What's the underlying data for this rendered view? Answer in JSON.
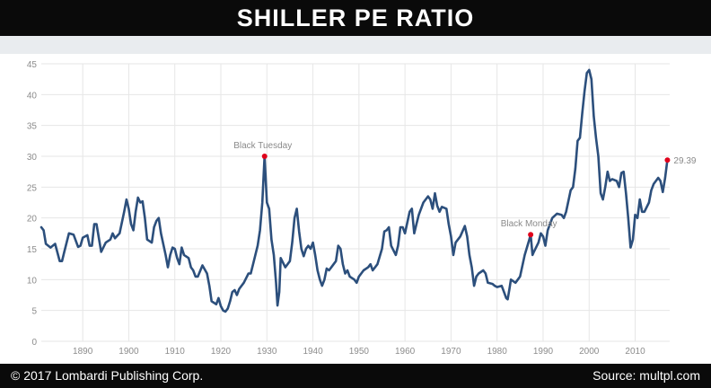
{
  "header": {
    "title": "SHILLER PE RATIO"
  },
  "footer": {
    "copyright": "© 2017 Lombardi Publishing Corp.",
    "source": "Source: multpl.com"
  },
  "colors": {
    "line": "#2c4f7c",
    "marker": "#e0001b",
    "grid": "#e6e6e6",
    "tick_text": "#8c8c8c",
    "annotation_text": "#8a8a8a"
  },
  "chart_data": {
    "type": "line",
    "title": "",
    "xlabel": "",
    "ylabel": "",
    "xlim": [
      1881,
      2017.5
    ],
    "ylim": [
      0,
      45
    ],
    "x_ticks": [
      1890,
      1900,
      1910,
      1920,
      1930,
      1940,
      1950,
      1960,
      1970,
      1980,
      1990,
      2000,
      2010
    ],
    "y_ticks": [
      0,
      5,
      10,
      15,
      20,
      25,
      30,
      35,
      40,
      45
    ],
    "grid": true,
    "series": [
      {
        "points": [
          [
            1881,
            18.5
          ],
          [
            1881.5,
            18
          ],
          [
            1882,
            15.8
          ],
          [
            1883,
            15.2
          ],
          [
            1884,
            15.8
          ],
          [
            1885,
            13
          ],
          [
            1885.5,
            13
          ],
          [
            1886,
            14.5
          ],
          [
            1887,
            17.5
          ],
          [
            1888,
            17.3
          ],
          [
            1889,
            15.3
          ],
          [
            1889.5,
            15.5
          ],
          [
            1890,
            16.8
          ],
          [
            1891,
            17.2
          ],
          [
            1891.5,
            15.5
          ],
          [
            1892,
            15.5
          ],
          [
            1892.5,
            19
          ],
          [
            1893,
            19
          ],
          [
            1894,
            14.5
          ],
          [
            1895,
            16
          ],
          [
            1896,
            16.5
          ],
          [
            1896.5,
            17.5
          ],
          [
            1897,
            16.7
          ],
          [
            1898,
            17.5
          ],
          [
            1899,
            21
          ],
          [
            1899.5,
            23
          ],
          [
            1900,
            21.5
          ],
          [
            1900.5,
            19
          ],
          [
            1901,
            18
          ],
          [
            1901.5,
            21
          ],
          [
            1902,
            23.3
          ],
          [
            1902.5,
            22.5
          ],
          [
            1903,
            22.7
          ],
          [
            1903.5,
            20
          ],
          [
            1904,
            16.5
          ],
          [
            1905,
            16
          ],
          [
            1905.5,
            18.5
          ],
          [
            1906,
            19.5
          ],
          [
            1906.5,
            20
          ],
          [
            1907,
            17.5
          ],
          [
            1908,
            14
          ],
          [
            1908.5,
            12
          ],
          [
            1909,
            14
          ],
          [
            1909.5,
            15.2
          ],
          [
            1910,
            15
          ],
          [
            1910.5,
            13.5
          ],
          [
            1911,
            12.5
          ],
          [
            1911.5,
            15.2
          ],
          [
            1912,
            14
          ],
          [
            1913,
            13.5
          ],
          [
            1913.5,
            12
          ],
          [
            1914,
            11.5
          ],
          [
            1914.5,
            10.5
          ],
          [
            1915,
            10.5
          ],
          [
            1916,
            12.3
          ],
          [
            1917,
            11
          ],
          [
            1917.5,
            9
          ],
          [
            1918,
            6.5
          ],
          [
            1919,
            6
          ],
          [
            1919.5,
            7
          ],
          [
            1920,
            5.7
          ],
          [
            1920.5,
            5
          ],
          [
            1921,
            4.8
          ],
          [
            1921.5,
            5.3
          ],
          [
            1922,
            6.5
          ],
          [
            1922.5,
            8
          ],
          [
            1923,
            8.3
          ],
          [
            1923.5,
            7.5
          ],
          [
            1924,
            8.5
          ],
          [
            1925,
            9.5
          ],
          [
            1926,
            11
          ],
          [
            1926.5,
            11
          ],
          [
            1927,
            12.5
          ],
          [
            1928,
            15.5
          ],
          [
            1928.5,
            18
          ],
          [
            1929,
            22.5
          ],
          [
            1929.5,
            30
          ],
          [
            1930,
            22.5
          ],
          [
            1930.5,
            21.5
          ],
          [
            1931,
            16.5
          ],
          [
            1931.5,
            14
          ],
          [
            1932,
            9.5
          ],
          [
            1932.3,
            5.8
          ],
          [
            1932.7,
            8
          ],
          [
            1933,
            13.5
          ],
          [
            1934,
            12
          ],
          [
            1935,
            13
          ],
          [
            1935.5,
            16
          ],
          [
            1936,
            20
          ],
          [
            1936.5,
            21.5
          ],
          [
            1937,
            17.8
          ],
          [
            1937.5,
            15
          ],
          [
            1938,
            13.8
          ],
          [
            1938.5,
            15
          ],
          [
            1939,
            15.5
          ],
          [
            1939.5,
            15
          ],
          [
            1940,
            16
          ],
          [
            1940.5,
            14
          ],
          [
            1941,
            11.5
          ],
          [
            1941.5,
            10
          ],
          [
            1942,
            9
          ],
          [
            1942.5,
            10
          ],
          [
            1943,
            11.8
          ],
          [
            1943.5,
            11.5
          ],
          [
            1944,
            12
          ],
          [
            1945,
            13
          ],
          [
            1945.5,
            15.5
          ],
          [
            1946,
            15
          ],
          [
            1946.5,
            12.5
          ],
          [
            1947,
            11
          ],
          [
            1947.5,
            11.5
          ],
          [
            1948,
            10.5
          ],
          [
            1949,
            10
          ],
          [
            1949.5,
            9.5
          ],
          [
            1950,
            10.5
          ],
          [
            1950.5,
            11
          ],
          [
            1951,
            11.5
          ],
          [
            1952,
            12
          ],
          [
            1952.5,
            12.5
          ],
          [
            1953,
            11.5
          ],
          [
            1954,
            12.5
          ],
          [
            1955,
            15
          ],
          [
            1955.5,
            17.8
          ],
          [
            1956,
            18
          ],
          [
            1956.5,
            18.5
          ],
          [
            1957,
            15.5
          ],
          [
            1958,
            14
          ],
          [
            1958.5,
            15.5
          ],
          [
            1959,
            18.5
          ],
          [
            1959.5,
            18.5
          ],
          [
            1960,
            17.5
          ],
          [
            1961,
            21
          ],
          [
            1961.5,
            21.5
          ],
          [
            1962,
            17.5
          ],
          [
            1962.5,
            19
          ],
          [
            1963,
            20.5
          ],
          [
            1964,
            22.5
          ],
          [
            1965,
            23.5
          ],
          [
            1965.5,
            23
          ],
          [
            1966,
            21.5
          ],
          [
            1966.5,
            24
          ],
          [
            1967,
            22
          ],
          [
            1967.5,
            21
          ],
          [
            1968,
            21.8
          ],
          [
            1969,
            21.5
          ],
          [
            1969.5,
            19
          ],
          [
            1970,
            17
          ],
          [
            1970.5,
            14
          ],
          [
            1971,
            16
          ],
          [
            1971.5,
            16.5
          ],
          [
            1972,
            17
          ],
          [
            1973,
            18.7
          ],
          [
            1973.5,
            17
          ],
          [
            1974,
            14
          ],
          [
            1974.5,
            12
          ],
          [
            1975,
            9
          ],
          [
            1975.5,
            10.5
          ],
          [
            1976,
            11
          ],
          [
            1977,
            11.5
          ],
          [
            1977.5,
            11
          ],
          [
            1978,
            9.5
          ],
          [
            1979,
            9.3
          ],
          [
            1979.5,
            9
          ],
          [
            1980,
            8.8
          ],
          [
            1981,
            9
          ],
          [
            1981.5,
            8
          ],
          [
            1982,
            7
          ],
          [
            1982.3,
            6.8
          ],
          [
            1982.7,
            8.5
          ],
          [
            1983,
            10
          ],
          [
            1984,
            9.5
          ],
          [
            1984.5,
            10
          ],
          [
            1985,
            10.5
          ],
          [
            1986,
            14
          ],
          [
            1987,
            16.5
          ],
          [
            1987.3,
            17.3
          ],
          [
            1987.7,
            14
          ],
          [
            1988,
            14.5
          ],
          [
            1989,
            16
          ],
          [
            1989.5,
            17.5
          ],
          [
            1990,
            17
          ],
          [
            1990.5,
            15.5
          ],
          [
            1991,
            18
          ],
          [
            1992,
            20
          ],
          [
            1993,
            20.7
          ],
          [
            1994,
            20.5
          ],
          [
            1994.5,
            20
          ],
          [
            1995,
            21
          ],
          [
            1996,
            24.5
          ],
          [
            1996.5,
            25
          ],
          [
            1997,
            28
          ],
          [
            1997.5,
            32.5
          ],
          [
            1998,
            33
          ],
          [
            1998.5,
            37
          ],
          [
            1999,
            40.5
          ],
          [
            1999.5,
            43.5
          ],
          [
            2000,
            44
          ],
          [
            2000.5,
            42.5
          ],
          [
            2001,
            36.5
          ],
          [
            2001.5,
            33
          ],
          [
            2002,
            30
          ],
          [
            2002.5,
            24
          ],
          [
            2003,
            23
          ],
          [
            2003.5,
            25
          ],
          [
            2004,
            27.5
          ],
          [
            2004.5,
            26
          ],
          [
            2005,
            26.3
          ],
          [
            2006,
            26
          ],
          [
            2006.5,
            25
          ],
          [
            2007,
            27.3
          ],
          [
            2007.5,
            27.5
          ],
          [
            2008,
            24
          ],
          [
            2008.5,
            20
          ],
          [
            2009,
            15.2
          ],
          [
            2009.5,
            16.5
          ],
          [
            2010,
            20.5
          ],
          [
            2010.5,
            20
          ],
          [
            2011,
            23
          ],
          [
            2011.5,
            21
          ],
          [
            2012,
            21
          ],
          [
            2013,
            22.5
          ],
          [
            2013.5,
            24.5
          ],
          [
            2014,
            25.5
          ],
          [
            2015,
            26.5
          ],
          [
            2015.5,
            26
          ],
          [
            2016,
            24.2
          ],
          [
            2016.5,
            26.5
          ],
          [
            2017,
            29.39
          ]
        ]
      }
    ],
    "annotations": [
      {
        "label": "Black Tuesday",
        "x": 1929.5,
        "y": 30.0
      },
      {
        "label": "Black Monday",
        "x": 1987.3,
        "y": 17.3
      },
      {
        "label": "29.39",
        "x": 2017,
        "y": 29.39
      }
    ]
  }
}
